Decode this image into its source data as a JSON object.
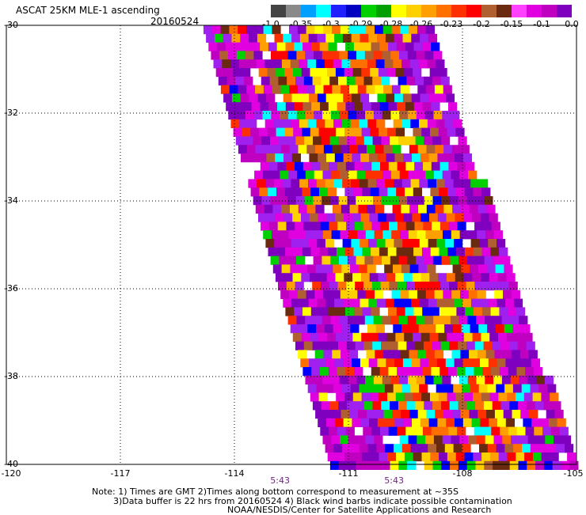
{
  "title": "ASCAT 25KM MLE-1 ascending",
  "date": "20160524",
  "colorbar": {
    "colors": [
      "#444444",
      "#8a8a8a",
      "#00a0ff",
      "#00ffff",
      "#2020ff",
      "#0000c0",
      "#00d000",
      "#00a000",
      "#ffff00",
      "#ffd000",
      "#ffa000",
      "#ff7000",
      "#ff3000",
      "#ff0000",
      "#b06030",
      "#6a2a10",
      "#ff40ff",
      "#e000e0",
      "#c000c0",
      "#8000c0"
    ],
    "tick_labels": [
      "-1.0",
      "-0.35",
      "-0.3",
      "-0.29",
      "-0.28",
      "-0.26",
      "-0.23",
      "-0.2",
      "-0.15",
      "-0.1",
      "0.0"
    ]
  },
  "chart_data": {
    "type": "heatmap",
    "xlabel": "",
    "ylabel": "",
    "xlim": [
      -120,
      -105
    ],
    "ylim": [
      -40,
      -30
    ],
    "x_tick_labels": [
      "-120",
      "-117",
      "-114",
      "-111",
      "-108",
      "-105"
    ],
    "y_tick_labels": [
      "-30",
      "-32",
      "-34",
      "-36",
      "-38",
      "-40"
    ],
    "time_labels": [
      {
        "x": -112.8,
        "text": "5:43"
      },
      {
        "x": -109.8,
        "text": "5:43"
      }
    ]
  },
  "notes": {
    "line1": "Note: 1) Times are GMT 2)Times along bottom correspond to measurement at ~35S",
    "line2": "3)Data buffer is 22 hrs from 20160524 4) Black wind barbs indicate possible contamination",
    "line3": "NOAA/NESDIS/Center for Satellite Applications and Research"
  }
}
